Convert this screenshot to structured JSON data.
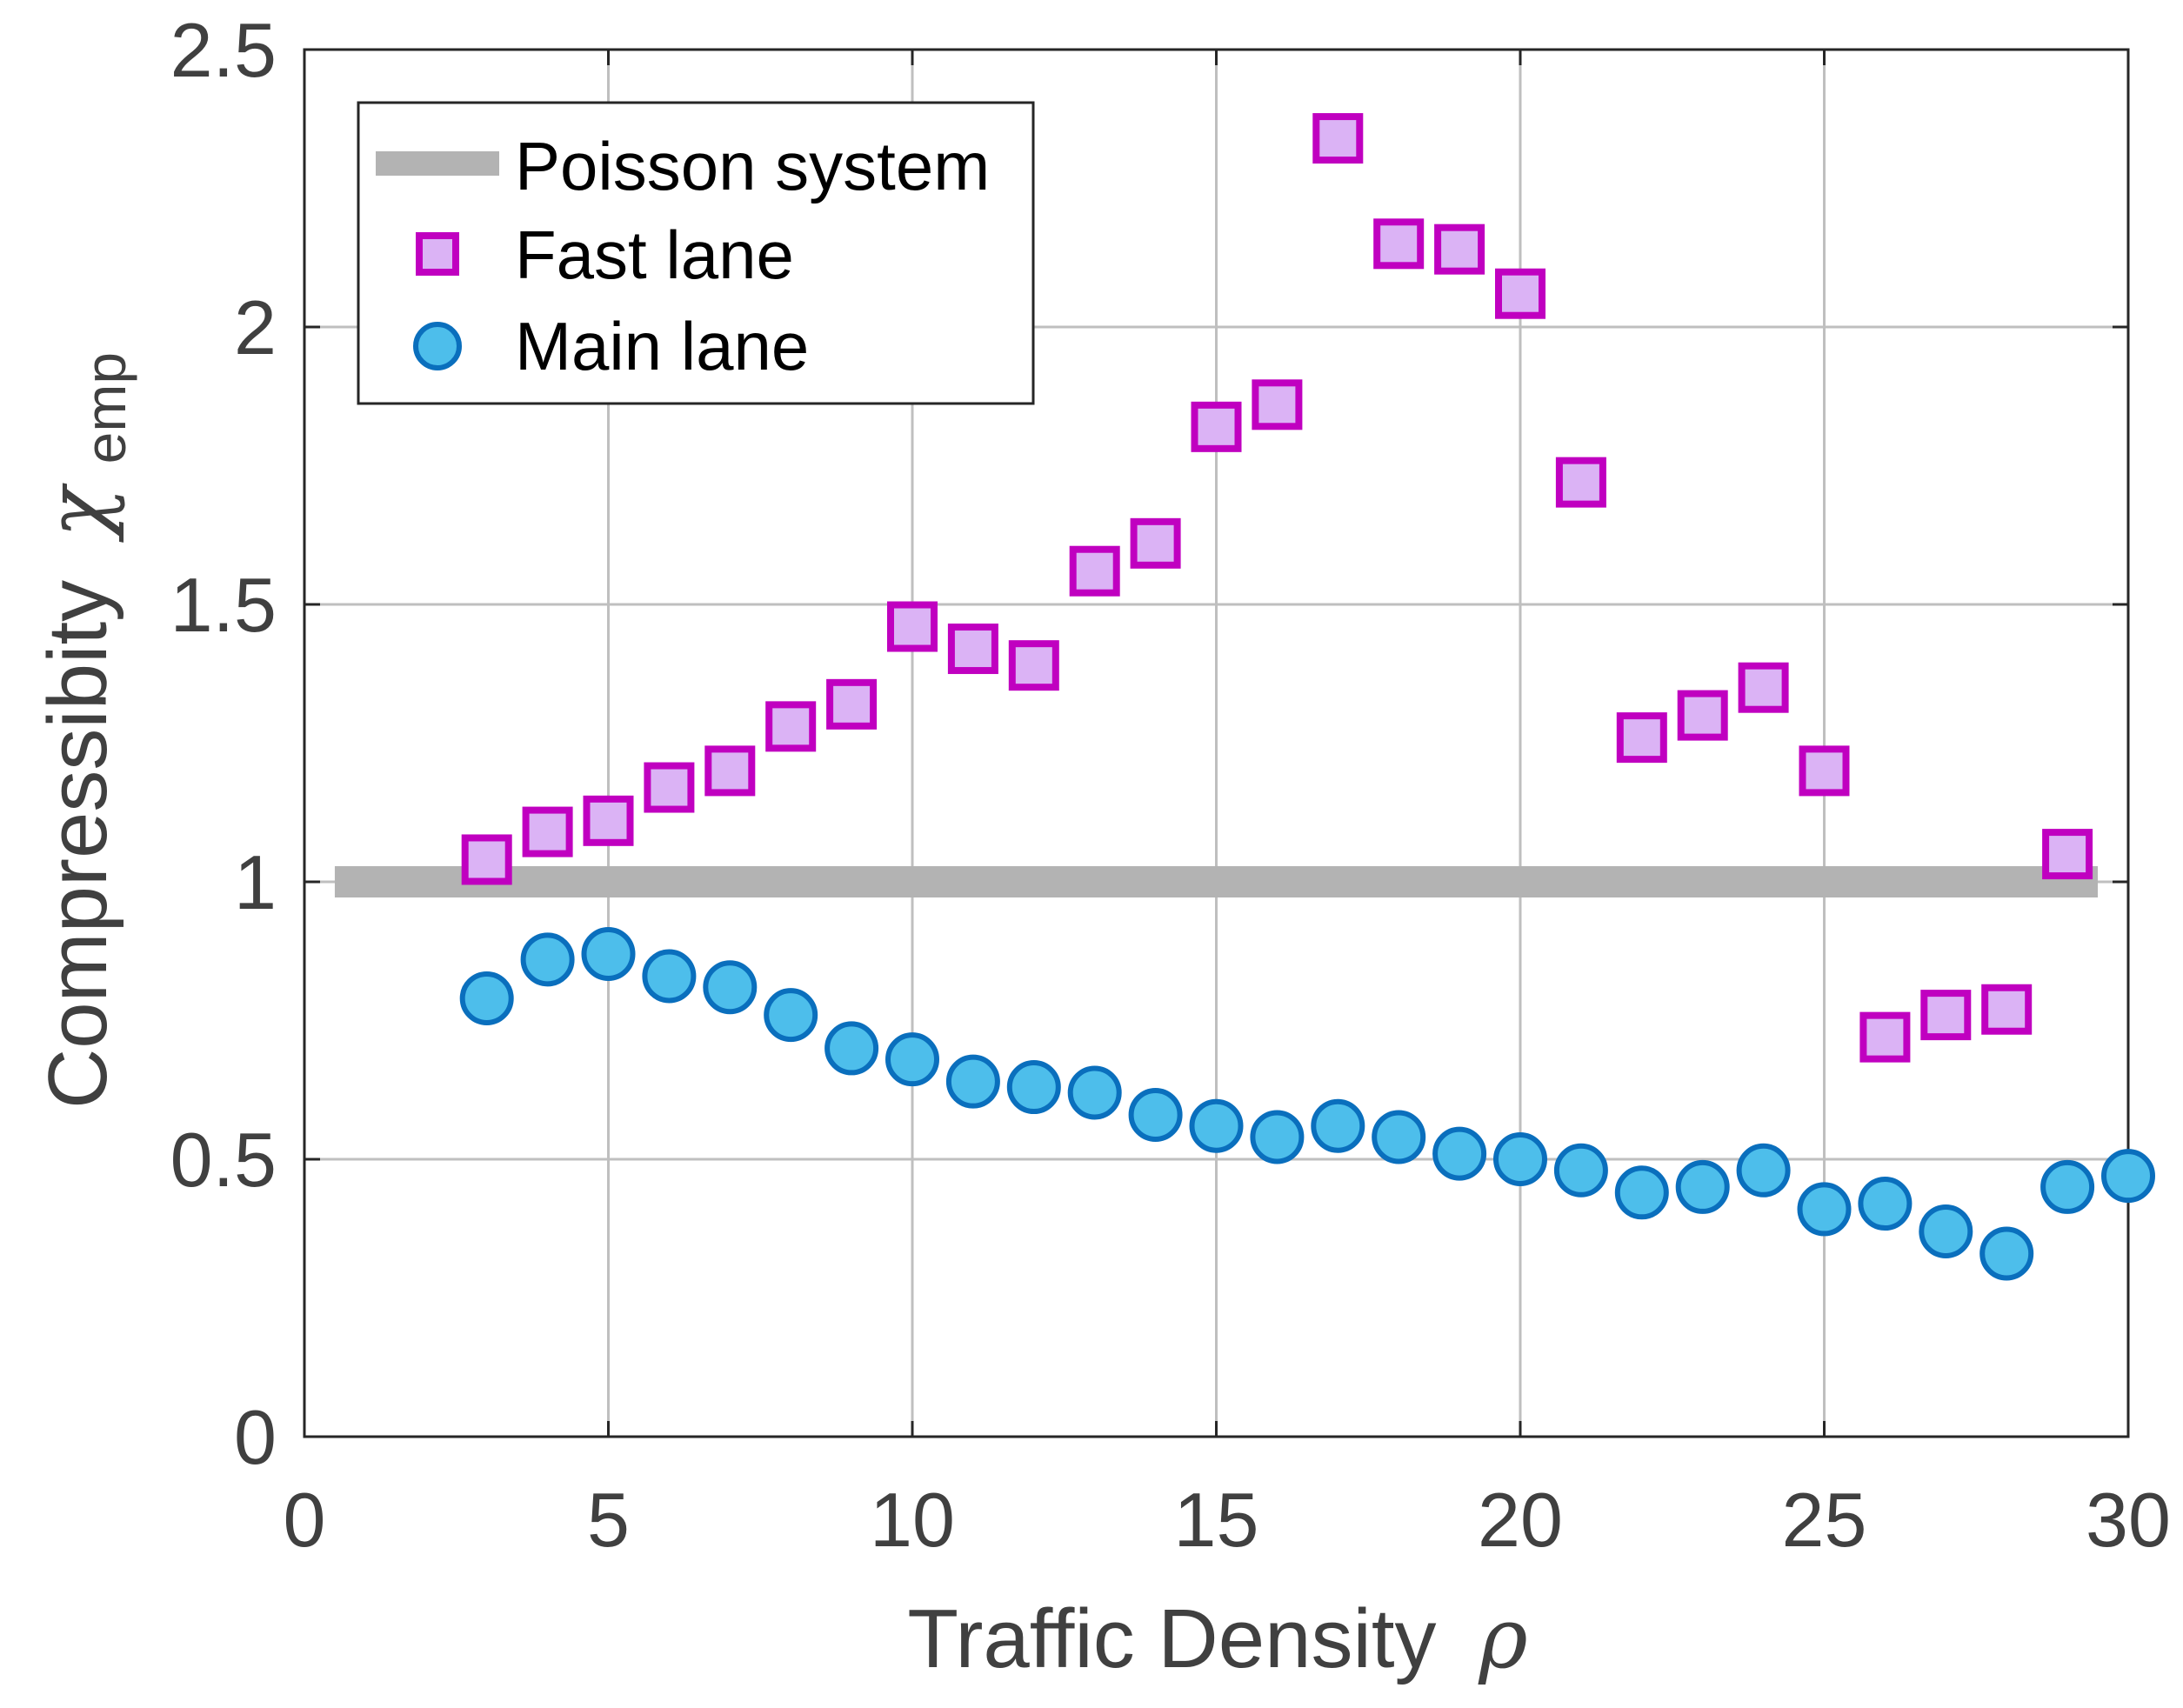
{
  "chart_data": {
    "type": "scatter",
    "xlabel": {
      "text": "Traffic Density",
      "symbol": "ρ"
    },
    "ylabel": {
      "text": "Compressibity",
      "symbol": "χ",
      "subscript": "emp"
    },
    "xlim": [
      0,
      30
    ],
    "ylim": [
      0,
      2.5
    ],
    "xticks": [
      "0",
      "5",
      "10",
      "15",
      "20",
      "25",
      "30"
    ],
    "yticks": [
      "0",
      "0.5",
      "1",
      "1.5",
      "2",
      "2.5"
    ],
    "grid": true,
    "legend_position": "top-left",
    "reference_line": {
      "name": "Poisson system",
      "y": 1,
      "x_range": [
        0.5,
        29.5
      ],
      "color": "#b3b3b3"
    },
    "series": [
      {
        "name": "Fast lane",
        "marker": "square",
        "face_color": "#dbb3f5",
        "edge_color": "#c000c0",
        "x": [
          3,
          4,
          5,
          6,
          7,
          8,
          9,
          10,
          11,
          12,
          13,
          14,
          15,
          16,
          17,
          18,
          19,
          20,
          21,
          22,
          23,
          24,
          25,
          26,
          27,
          28,
          29
        ],
        "y": [
          1.04,
          1.09,
          1.11,
          1.17,
          1.2,
          1.28,
          1.32,
          1.46,
          1.42,
          1.39,
          1.56,
          1.61,
          1.82,
          1.86,
          2.34,
          2.15,
          2.14,
          2.06,
          1.72,
          1.26,
          1.3,
          1.35,
          1.2,
          0.72,
          0.76,
          0.77,
          1.05
        ]
      },
      {
        "name": "Main lane",
        "marker": "circle",
        "face_color": "#4dbeeb",
        "edge_color": "#0a6fbd",
        "x": [
          3,
          4,
          5,
          6,
          7,
          8,
          9,
          10,
          11,
          12,
          13,
          14,
          15,
          16,
          17,
          18,
          19,
          20,
          21,
          22,
          23,
          24,
          25,
          26,
          27,
          28,
          29,
          30
        ],
        "y": [
          0.79,
          0.86,
          0.87,
          0.83,
          0.81,
          0.76,
          0.7,
          0.68,
          0.64,
          0.63,
          0.62,
          0.58,
          0.56,
          0.54,
          0.56,
          0.54,
          0.51,
          0.5,
          0.48,
          0.44,
          0.45,
          0.48,
          0.41,
          0.42,
          0.37,
          0.33,
          0.45,
          0.47
        ]
      }
    ]
  }
}
